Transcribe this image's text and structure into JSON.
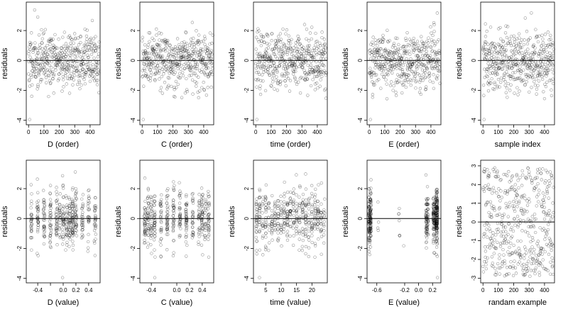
{
  "chart_data": [
    {
      "type": "scatter",
      "xlabel": "D (order)",
      "ylabel": "residuals",
      "xticks": [
        0,
        100,
        200,
        300,
        400
      ],
      "xtick_labels": [
        "0",
        "100",
        "200",
        "300",
        "400"
      ],
      "xlim": [
        -15,
        465
      ],
      "yticks": [
        -4,
        -2,
        0,
        2
      ],
      "ytick_labels": [
        "-4",
        "-2",
        "0",
        "2"
      ],
      "ylim": [
        -4.3,
        3.9
      ],
      "hline": 0,
      "n": 460,
      "x_kind": "index",
      "y_kind": "residual",
      "seed": 11
    },
    {
      "type": "scatter",
      "xlabel": "C (order)",
      "ylabel": "residuals",
      "xticks": [
        0,
        100,
        200,
        300,
        400
      ],
      "xtick_labels": [
        "0",
        "100",
        "200",
        "300",
        "400"
      ],
      "xlim": [
        -15,
        465
      ],
      "yticks": [
        -4,
        -2,
        0,
        2
      ],
      "ytick_labels": [
        "-4",
        "-2",
        "0",
        "2"
      ],
      "ylim": [
        -4.3,
        3.9
      ],
      "hline": 0,
      "n": 460,
      "x_kind": "index",
      "y_kind": "residual",
      "seed": 12
    },
    {
      "type": "scatter",
      "xlabel": "time (order)",
      "ylabel": "residuals",
      "xticks": [
        0,
        100,
        200,
        300,
        400
      ],
      "xtick_labels": [
        "0",
        "100",
        "200",
        "300",
        "400"
      ],
      "xlim": [
        -15,
        465
      ],
      "yticks": [
        -4,
        -2,
        0,
        2
      ],
      "ytick_labels": [
        "-4",
        "-2",
        "0",
        "2"
      ],
      "ylim": [
        -4.3,
        3.9
      ],
      "hline": 0,
      "n": 460,
      "x_kind": "index",
      "y_kind": "residual",
      "seed": 13
    },
    {
      "type": "scatter",
      "xlabel": "E (order)",
      "ylabel": "residuals",
      "xticks": [
        0,
        100,
        200,
        300,
        400
      ],
      "xtick_labels": [
        "0",
        "100",
        "200",
        "300",
        "400"
      ],
      "xlim": [
        -15,
        465
      ],
      "yticks": [
        -4,
        -2,
        0,
        2
      ],
      "ytick_labels": [
        "-4",
        "-2",
        "0",
        "2"
      ],
      "ylim": [
        -4.3,
        3.9
      ],
      "hline": 0,
      "n": 460,
      "x_kind": "index",
      "y_kind": "residual",
      "seed": 14
    },
    {
      "type": "scatter",
      "xlabel": "sample index",
      "ylabel": "residuals",
      "xticks": [
        0,
        100,
        200,
        300,
        400
      ],
      "xtick_labels": [
        "0",
        "100",
        "200",
        "300",
        "400"
      ],
      "xlim": [
        -15,
        465
      ],
      "yticks": [
        -4,
        -2,
        0,
        2
      ],
      "ytick_labels": [
        "-4",
        "-2",
        "0",
        "2"
      ],
      "ylim": [
        -4.3,
        3.9
      ],
      "hline": 0,
      "n": 460,
      "x_kind": "index",
      "y_kind": "residual",
      "seed": 15
    },
    {
      "type": "scatter",
      "xlabel": "D (value)",
      "ylabel": "residuals",
      "xticks": [
        -0.4,
        -0.2,
        0.0,
        0.2,
        0.4
      ],
      "xtick_labels": [
        "-0.4",
        "",
        "0.0",
        "0.2",
        "0.4"
      ],
      "xlim": [
        -0.58,
        0.58
      ],
      "yticks": [
        -4,
        -2,
        0,
        2
      ],
      "ytick_labels": [
        "-4",
        "-2",
        "0",
        "2"
      ],
      "ylim": [
        -4.3,
        3.9
      ],
      "hline": 0,
      "n": 460,
      "x_kind": "levels",
      "levels": [
        -0.5,
        -0.4,
        -0.3,
        -0.2,
        -0.1,
        -0.05,
        0.0,
        0.05,
        0.1,
        0.15,
        0.2,
        0.3,
        0.4,
        0.5
      ],
      "jitter": 0.012,
      "y_kind": "residual",
      "seed": 21
    },
    {
      "type": "scatter",
      "xlabel": "C (value)",
      "ylabel": "residuals",
      "xticks": [
        -0.4,
        0.0,
        0.2,
        0.4
      ],
      "xtick_labels": [
        "-0.4",
        "0.0",
        "0.2",
        "0.4"
      ],
      "xlim": [
        -0.58,
        0.58
      ],
      "yticks": [
        -4,
        -2,
        0,
        2
      ],
      "ytick_labels": [
        "-4",
        "-2",
        "0",
        "2"
      ],
      "ylim": [
        -4.3,
        3.9
      ],
      "hline": 0,
      "n": 460,
      "x_kind": "levels",
      "levels": [
        -0.5,
        -0.45,
        -0.4,
        -0.35,
        -0.25,
        -0.15,
        -0.05,
        0.05,
        0.15,
        0.25,
        0.35,
        0.4,
        0.45,
        0.5
      ],
      "jitter": 0.01,
      "y_kind": "residual",
      "seed": 22
    },
    {
      "type": "scatter",
      "xlabel": "time (value)",
      "ylabel": "residuals",
      "xticks": [
        5,
        10,
        15,
        20
      ],
      "xtick_labels": [
        "5",
        "10",
        "15",
        "20"
      ],
      "xlim": [
        1,
        25
      ],
      "yticks": [
        -4,
        -2,
        0,
        2
      ],
      "ytick_labels": [
        "-4",
        "-2",
        "0",
        "2"
      ],
      "ylim": [
        -4.3,
        3.9
      ],
      "hline": 0,
      "n": 460,
      "x_kind": "levels",
      "levels": [
        2,
        3,
        4,
        5,
        6,
        7,
        8,
        9,
        10,
        11,
        12,
        13,
        14,
        15,
        16,
        17,
        18,
        19,
        20,
        21,
        22,
        23,
        24
      ],
      "jitter": 0.15,
      "y_kind": "residual",
      "seed": 23
    },
    {
      "type": "scatter",
      "xlabel": "E (value)",
      "ylabel": "residuals",
      "xticks": [
        -0.6,
        -0.2,
        0.0,
        0.2
      ],
      "xtick_labels": [
        "-0.6",
        "-0.2",
        "0.0",
        "0.2"
      ],
      "xlim": [
        -0.74,
        0.32
      ],
      "yticks": [
        -4,
        -2,
        0,
        2
      ],
      "ytick_labels": [
        "-4",
        "-2",
        "0",
        "2"
      ],
      "ylim": [
        -4.3,
        3.9
      ],
      "hline": 0,
      "n": 460,
      "x_kind": "clusters",
      "clusters": [
        {
          "x": -0.7,
          "w": 0.018,
          "weight": 0.32
        },
        {
          "x": -0.58,
          "w": 0.006,
          "weight": 0.01
        },
        {
          "x": -0.28,
          "w": 0.01,
          "weight": 0.01
        },
        {
          "x": -0.22,
          "w": 0.01,
          "weight": 0.01
        },
        {
          "x": 0.12,
          "w": 0.018,
          "weight": 0.15
        },
        {
          "x": 0.22,
          "w": 0.012,
          "weight": 0.2
        },
        {
          "x": 0.26,
          "w": 0.012,
          "weight": 0.3
        }
      ],
      "y_kind": "residual",
      "seed": 24
    },
    {
      "type": "scatter",
      "xlabel": "randam example",
      "ylabel": "residuals",
      "xticks": [
        0,
        100,
        200,
        300,
        400
      ],
      "xtick_labels": [
        "0",
        "100",
        "200",
        "300",
        "400"
      ],
      "xlim": [
        -15,
        465
      ],
      "yticks": [
        -3,
        -2,
        -1,
        0,
        1,
        2,
        3
      ],
      "ytick_labels": [
        "-3",
        "-2",
        "-1",
        "0",
        "1",
        "2",
        "3"
      ],
      "ylim": [
        -3.25,
        3.3
      ],
      "hline": 0,
      "n": 460,
      "x_kind": "index",
      "y_kind": "uniform",
      "seed": 31
    }
  ]
}
